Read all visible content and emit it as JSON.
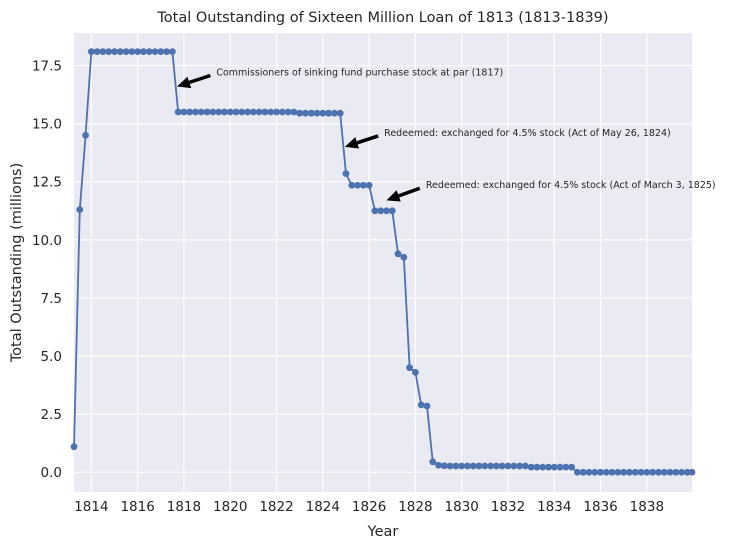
{
  "chart_data": {
    "type": "line",
    "title": "Total Outstanding of Sixteen Million Loan of 1813 (1813-1839)",
    "xlabel": "Year",
    "ylabel": "Total Outstanding (millions)",
    "xlim": [
      1813.25,
      1839.95
    ],
    "ylim": [
      -0.85,
      18.9
    ],
    "x_ticks": [
      1814,
      1816,
      1818,
      1820,
      1822,
      1824,
      1826,
      1828,
      1830,
      1832,
      1834,
      1836,
      1838
    ],
    "y_ticks": [
      0.0,
      2.5,
      5.0,
      7.5,
      10.0,
      12.5,
      15.0,
      17.5
    ],
    "y_tick_labels": [
      "0.0",
      "2.5",
      "5.0",
      "7.5",
      "10.0",
      "12.5",
      "15.0",
      "17.5"
    ],
    "grid": true,
    "legend": "none",
    "series": [
      {
        "color": "#4c72b0",
        "x": [
          1813.25,
          1813.5,
          1813.75,
          1814.0,
          1814.25,
          1814.5,
          1814.75,
          1815.0,
          1815.25,
          1815.5,
          1815.75,
          1816.0,
          1816.25,
          1816.5,
          1816.75,
          1817.0,
          1817.25,
          1817.5,
          1817.75,
          1818.0,
          1818.25,
          1818.5,
          1818.75,
          1819.0,
          1819.25,
          1819.5,
          1819.75,
          1820.0,
          1820.25,
          1820.5,
          1820.75,
          1821.0,
          1821.25,
          1821.5,
          1821.75,
          1822.0,
          1822.25,
          1822.5,
          1822.75,
          1823.0,
          1823.25,
          1823.5,
          1823.75,
          1824.0,
          1824.25,
          1824.5,
          1824.75,
          1825.0,
          1825.25,
          1825.5,
          1825.75,
          1826.0,
          1826.25,
          1826.5,
          1826.75,
          1827.0,
          1827.25,
          1827.5,
          1827.75,
          1828.0,
          1828.25,
          1828.5,
          1828.75,
          1829.0,
          1829.25,
          1829.5,
          1829.75,
          1830.0,
          1830.25,
          1830.5,
          1830.75,
          1831.0,
          1831.25,
          1831.5,
          1831.75,
          1832.0,
          1832.25,
          1832.5,
          1832.75,
          1833.0,
          1833.25,
          1833.5,
          1833.75,
          1834.0,
          1834.25,
          1834.5,
          1834.75,
          1835.0,
          1835.25,
          1835.5,
          1835.75,
          1836.0,
          1836.25,
          1836.5,
          1836.75,
          1837.0,
          1837.25,
          1837.5,
          1837.75,
          1838.0,
          1838.25,
          1838.5,
          1838.75,
          1839.0,
          1839.25,
          1839.5,
          1839.75,
          1839.95
        ],
        "y": [
          1.1,
          11.3,
          14.5,
          18.1,
          18.1,
          18.1,
          18.1,
          18.1,
          18.1,
          18.1,
          18.1,
          18.1,
          18.1,
          18.1,
          18.1,
          18.1,
          18.1,
          18.1,
          15.5,
          15.5,
          15.5,
          15.5,
          15.5,
          15.5,
          15.5,
          15.5,
          15.5,
          15.5,
          15.5,
          15.5,
          15.5,
          15.5,
          15.5,
          15.5,
          15.5,
          15.5,
          15.5,
          15.5,
          15.5,
          15.45,
          15.45,
          15.45,
          15.45,
          15.45,
          15.45,
          15.45,
          15.45,
          12.85,
          12.35,
          12.35,
          12.35,
          12.35,
          11.25,
          11.25,
          11.25,
          11.25,
          9.4,
          9.25,
          4.5,
          4.3,
          2.9,
          2.85,
          0.45,
          0.3,
          0.28,
          0.27,
          0.27,
          0.27,
          0.27,
          0.27,
          0.27,
          0.27,
          0.27,
          0.27,
          0.27,
          0.27,
          0.27,
          0.27,
          0.27,
          0.22,
          0.22,
          0.22,
          0.22,
          0.22,
          0.22,
          0.22,
          0.22,
          0.0,
          0.0,
          0.0,
          0.0,
          0.0,
          0.0,
          0.0,
          0.0,
          0.0,
          0.0,
          0.0,
          0.0,
          0.0,
          0.0,
          0.0,
          0.0,
          0.0,
          0.0,
          0.0,
          0.0,
          0.0
        ]
      }
    ],
    "annotations": [
      {
        "text": "Commissioners of sinking fund purchase stock at par (1817)",
        "x": 1817.7,
        "y": 16.6,
        "text_x": 1819.4,
        "text_y": 17.2
      },
      {
        "text": "Redeemed: exchanged for 4.5% stock (Act of May 26, 1824)",
        "x": 1824.95,
        "y": 14.0,
        "text_x": 1826.65,
        "text_y": 14.6
      },
      {
        "text": "Redeemed: exchanged for 4.5% stock (Act of March 3, 1825)",
        "x": 1826.75,
        "y": 11.7,
        "text_x": 1828.45,
        "text_y": 12.35
      }
    ]
  }
}
